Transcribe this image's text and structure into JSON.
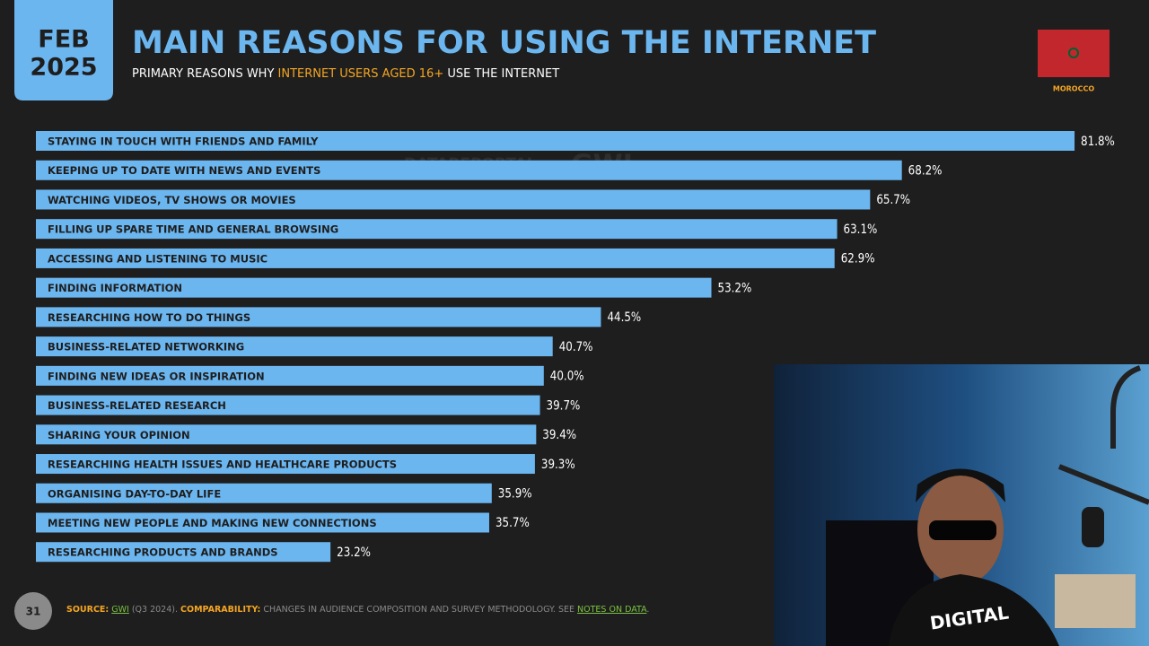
{
  "header": {
    "date_month": "FEB",
    "date_year": "2025",
    "country": "MOROCCO",
    "watermark": [
      "DATAREPORTAL",
      "GWI."
    ]
  },
  "chart_data": {
    "type": "hbar",
    "title": "MAIN REASONS FOR USING THE INTERNET",
    "subtitle": [
      "PRIMARY REASONS WHY ",
      "INTERNET USERS AGED 16+",
      " USE THE INTERNET"
    ],
    "color": "#6cb6f0",
    "categories": [
      "STAYING IN TOUCH WITH FRIENDS AND FAMILY",
      "KEEPING UP TO DATE WITH NEWS AND EVENTS",
      "WATCHING VIDEOS, TV SHOWS OR MOVIES",
      "FILLING UP SPARE TIME AND GENERAL BROWSING",
      "ACCESSING AND LISTENING TO MUSIC",
      "FINDING INFORMATION",
      "RESEARCHING HOW TO DO THINGS",
      "BUSINESS-RELATED NETWORKING",
      "FINDING NEW IDEAS OR INSPIRATION",
      "BUSINESS-RELATED RESEARCH",
      "SHARING YOUR OPINION",
      "RESEARCHING HEALTH ISSUES AND HEALTHCARE PRODUCTS",
      "ORGANISING DAY-TO-DAY LIFE",
      "MEETING NEW PEOPLE AND MAKING NEW CONNECTIONS",
      "RESEARCHING PRODUCTS AND BRANDS"
    ],
    "values": [
      81.8,
      68.2,
      65.7,
      63.1,
      62.9,
      53.2,
      44.5,
      40.7,
      40.0,
      39.7,
      39.4,
      39.3,
      35.9,
      35.7,
      23.2
    ],
    "value_labels": [
      "81.8%",
      "68.2%",
      "65.7%",
      "63.1%",
      "62.9%",
      "53.2%",
      "44.5%",
      "40.7%",
      "40.0%",
      "39.7%",
      "39.4%",
      "39.3%",
      "35.9%",
      "35.7%",
      "23.2%"
    ]
  },
  "footer": {
    "page": "31",
    "source_label": "SOURCE:",
    "source": "GWI",
    "source_period": "(Q3 2024).",
    "comparability_label": "COMPARABILITY:",
    "comparability": "CHANGES IN AUDIENCE COMPOSITION AND SURVEY METHODOLOGY. SEE",
    "notes_link": "NOTES ON DATA",
    "end": "."
  },
  "webcam": {
    "shirt_text": "DIGITAL"
  }
}
